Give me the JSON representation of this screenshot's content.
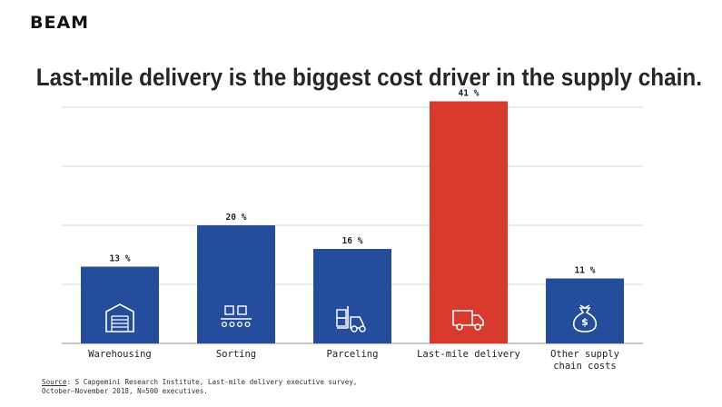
{
  "brand": {
    "logo_text": "BEAM"
  },
  "title": "Last-mile delivery is the biggest cost driver in the supply chain.",
  "colors": {
    "bar": "#244d9b",
    "highlight": "#d93a2e",
    "grid": "#d9d9d9",
    "axis": "#8f8f8f"
  },
  "source": {
    "prefix": "Source",
    "line1": ": S Capgemini Research Institute, Last-mile delivery executive survey,",
    "line2": "October–November 2018, N=500 executives."
  },
  "chart_data": {
    "type": "bar",
    "categories": [
      "Warehousing",
      "Sorting",
      "Parceling",
      "Last-mile delivery",
      "Other supply chain costs"
    ],
    "category_lines": [
      [
        "Warehousing"
      ],
      [
        "Sorting"
      ],
      [
        "Parceling"
      ],
      [
        "Last-mile delivery"
      ],
      [
        "Other supply",
        "chain costs"
      ]
    ],
    "values": [
      13,
      20,
      16,
      41,
      11
    ],
    "value_labels": [
      "13 %",
      "20 %",
      "16 %",
      "41 %",
      "11 %"
    ],
    "highlight_index": 3,
    "icons": [
      "warehouse-icon",
      "conveyor-icon",
      "forklift-icon",
      "truck-icon",
      "money-bag-icon"
    ],
    "ylim": [
      0,
      40
    ],
    "grid": true,
    "title": "",
    "xlabel": "",
    "ylabel": ""
  }
}
